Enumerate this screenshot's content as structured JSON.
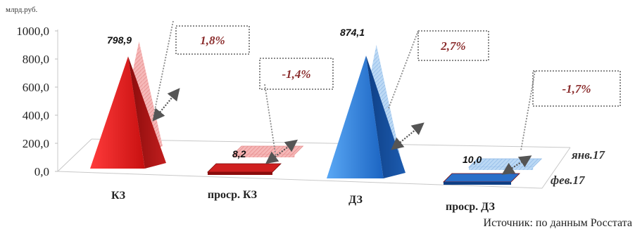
{
  "chart_data": {
    "type": "bar",
    "unit_label": "млрд.руб.",
    "categories": [
      "КЗ",
      "проср. КЗ",
      "ДЗ",
      "проср. ДЗ"
    ],
    "series": [
      {
        "name": "янв.17",
        "values": [
          784.8,
          8.3,
          851.1,
          10.2
        ]
      },
      {
        "name": "фев.17",
        "values": [
          798.9,
          8.2,
          874.1,
          10.0
        ]
      }
    ],
    "value_labels": [
      "798,9",
      "8,2",
      "874,1",
      "10,0"
    ],
    "changes": [
      "1,8%",
      "-1,4%",
      "2,7%",
      "-1,7%"
    ],
    "yticks": [
      "0,0",
      "200,0",
      "400,0",
      "600,0",
      "800,0",
      "1000,0"
    ],
    "ylim": [
      0,
      1000
    ],
    "colors": {
      "kz_front": "#e53030",
      "kz_back": "#f2a3a3",
      "dz_front": "#2a7fd8",
      "dz_back": "#a9cdf2",
      "change_text": "#8b2d2d"
    }
  },
  "source": "Источник: по данным Росстата"
}
